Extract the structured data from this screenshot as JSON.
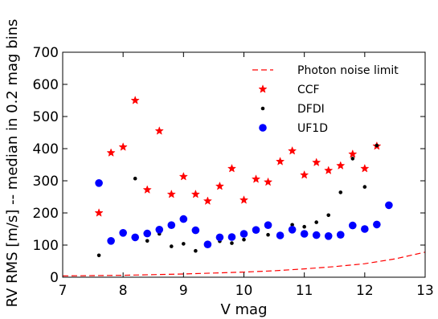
{
  "chart_data": {
    "type": "scatter",
    "title": "",
    "xlabel": "V mag",
    "ylabel": "RV RMS [m/s] -- median in 0.2 mag bins",
    "xlim": [
      7,
      13
    ],
    "ylim": [
      0,
      700
    ],
    "x_ticks": [
      7,
      8,
      9,
      10,
      11,
      12,
      13
    ],
    "y_ticks": [
      0,
      100,
      200,
      300,
      400,
      500,
      600,
      700
    ],
    "grid": false,
    "legend_position": "top-right",
    "series": [
      {
        "name": "Photon noise limit",
        "kind": "line",
        "style": "dashed",
        "color": "#ff0000",
        "x": [
          7.0,
          7.5,
          8.0,
          8.5,
          9.0,
          9.5,
          10.0,
          10.5,
          11.0,
          11.5,
          12.0,
          12.5,
          13.0
        ],
        "y": [
          4,
          5,
          6,
          8,
          10,
          13,
          16,
          20,
          26,
          33,
          42,
          57,
          78
        ]
      },
      {
        "name": "CCF",
        "kind": "star",
        "color": "#ff0000",
        "x": [
          7.6,
          7.8,
          8.0,
          8.2,
          8.4,
          8.6,
          8.8,
          9.0,
          9.2,
          9.4,
          9.6,
          9.8,
          10.0,
          10.2,
          10.4,
          10.6,
          10.8,
          11.0,
          11.2,
          11.4,
          11.6,
          11.8,
          12.0,
          12.2
        ],
        "y": [
          200,
          387,
          405,
          550,
          272,
          455,
          258,
          313,
          258,
          237,
          283,
          338,
          240,
          305,
          296,
          360,
          393,
          318,
          357,
          332,
          347,
          383,
          338,
          408
        ]
      },
      {
        "name": "DFDI",
        "kind": "dot",
        "color": "#000000",
        "x": [
          7.6,
          7.8,
          8.0,
          8.2,
          8.4,
          8.6,
          8.8,
          9.0,
          9.2,
          9.4,
          9.6,
          9.8,
          10.0,
          10.2,
          10.4,
          10.6,
          10.8,
          11.0,
          11.2,
          11.4,
          11.6,
          11.8,
          12.0,
          12.2
        ],
        "y": [
          68,
          113,
          135,
          307,
          113,
          135,
          96,
          104,
          82,
          100,
          112,
          106,
          117,
          144,
          132,
          132,
          163,
          157,
          171,
          193,
          264,
          369,
          281,
          410
        ]
      },
      {
        "name": "UF1D",
        "kind": "circle",
        "color": "#0000ff",
        "x": [
          7.6,
          7.8,
          8.0,
          8.2,
          8.4,
          8.6,
          8.8,
          9.0,
          9.2,
          9.4,
          9.6,
          9.8,
          10.0,
          10.2,
          10.4,
          10.6,
          10.8,
          11.0,
          11.2,
          11.4,
          11.6,
          11.8,
          12.0,
          12.2,
          12.4
        ],
        "y": [
          293,
          113,
          138,
          124,
          136,
          148,
          162,
          181,
          146,
          102,
          124,
          125,
          135,
          147,
          162,
          130,
          148,
          135,
          131,
          128,
          132,
          161,
          150,
          164,
          224
        ]
      }
    ]
  }
}
